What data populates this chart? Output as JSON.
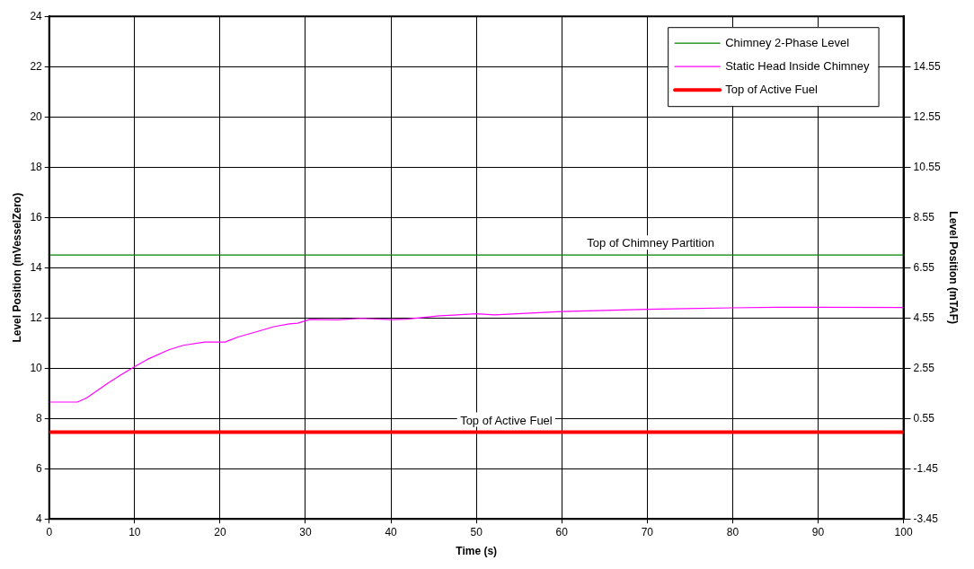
{
  "chart_data": {
    "type": "line",
    "xlabel": "Time (s)",
    "ylabel": "Level Position (mVesselZero)",
    "y2label": "Level Position (mTAF)",
    "xlim": [
      0,
      100
    ],
    "xticks": [
      0,
      10,
      20,
      30,
      40,
      50,
      60,
      70,
      80,
      90,
      100
    ],
    "ylim": [
      4,
      24
    ],
    "yticks": [
      4,
      6,
      8,
      10,
      12,
      14,
      16,
      18,
      20,
      22,
      24
    ],
    "y2lim": [
      -3.45,
      16.55
    ],
    "y2ticks": [
      -3.45,
      -1.45,
      0.55,
      2.55,
      4.55,
      6.55,
      8.55,
      10.55,
      12.55,
      14.55
    ],
    "grid": true,
    "legend": "top right",
    "marker": "none",
    "line_style": "solid",
    "series": [
      {
        "name": "Chimney 2-Phase Level",
        "color": "#008000",
        "x": [
          0,
          100
        ],
        "values": [
          14.5,
          14.5
        ]
      },
      {
        "name": "Static Head Inside Chimney",
        "color": "#ff00ff",
        "x": [
          0,
          3.3,
          4.4,
          6.9,
          8.3,
          10,
          11.5,
          14,
          15.7,
          18.2,
          20.6,
          22.1,
          24.5,
          26.3,
          28.1,
          29.1,
          30.5,
          33.7,
          36.5,
          40.1,
          41.8,
          45.7,
          50,
          52.1,
          60,
          70,
          80,
          85.2,
          90,
          100
        ],
        "values": [
          8.65,
          8.65,
          8.82,
          9.41,
          9.71,
          10.06,
          10.35,
          10.73,
          10.91,
          11.04,
          11.04,
          11.24,
          11.47,
          11.65,
          11.76,
          11.79,
          11.94,
          11.92,
          11.98,
          11.93,
          11.95,
          12.08,
          12.16,
          12.12,
          12.25,
          12.34,
          12.4,
          12.42,
          12.42,
          12.41
        ]
      },
      {
        "name": "Top of Active Fuel",
        "color": "#ff0000",
        "x": [
          0,
          100
        ],
        "values": [
          7.45,
          7.45
        ]
      }
    ],
    "annotations": [
      {
        "text": "Top of Chimney Partition",
        "x": 70.4,
        "y": 14.5
      },
      {
        "text": "Top of Active Fuel",
        "x": 53.5,
        "y": 7.45
      }
    ]
  }
}
